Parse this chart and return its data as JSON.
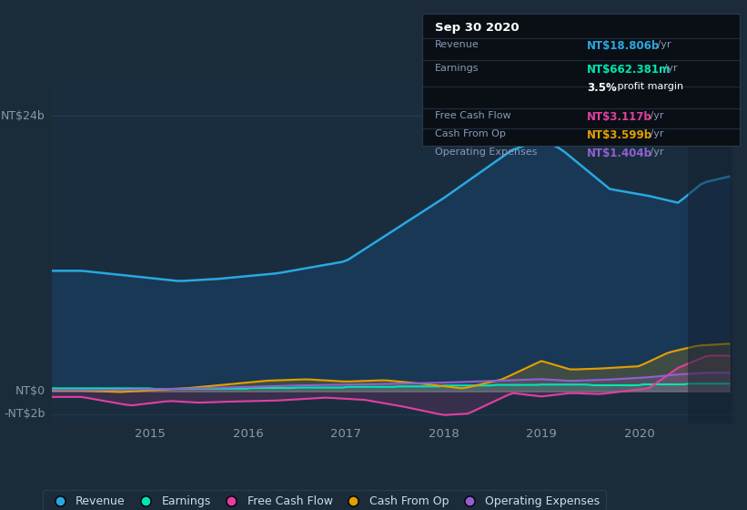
{
  "bg_color": "#1c2b3a",
  "chart_area_color": "#1a2d3e",
  "dark_strip_color": "#0f1923",
  "tooltip_bg": "#0a0f15",
  "tooltip_border": "#2a3a4a",
  "ylabel_top": "NT$24b",
  "ylabel_zero": "NT$0",
  "ylabel_neg": "-NT$2b",
  "ylim_low": -2.8,
  "ylim_high": 27,
  "xlabel_years": [
    "2015",
    "2016",
    "2017",
    "2018",
    "2019",
    "2020"
  ],
  "legend_items": [
    {
      "label": "Revenue",
      "color": "#29a8e0"
    },
    {
      "label": "Earnings",
      "color": "#00e5b0"
    },
    {
      "label": "Free Cash Flow",
      "color": "#e040a0"
    },
    {
      "label": "Cash From Op",
      "color": "#e0a000"
    },
    {
      "label": "Operating Expenses",
      "color": "#9060d0"
    }
  ],
  "revenue_color": "#29a8e0",
  "revenue_fill": "#183a5a",
  "earnings_color": "#00e5b0",
  "fcf_color": "#e040a0",
  "cashfromop_color": "#e0a000",
  "opex_color": "#9060d0",
  "tooltip_title": "Sep 30 2020",
  "tooltip_rows": [
    {
      "label": "Revenue",
      "value": "NT$18.806b",
      "suffix": " /yr",
      "color": "#29a8e0"
    },
    {
      "label": "Earnings",
      "value": "NT$662.381m",
      "suffix": " /yr",
      "color": "#00e5b0"
    },
    {
      "label": "",
      "value": "3.5%",
      "suffix": " profit margin",
      "color": "#ffffff"
    },
    {
      "label": "Free Cash Flow",
      "value": "NT$3.117b",
      "suffix": " /yr",
      "color": "#e040a0"
    },
    {
      "label": "Cash From Op",
      "value": "NT$3.599b",
      "suffix": " /yr",
      "color": "#e0a000"
    },
    {
      "label": "Operating Expenses",
      "value": "NT$1.404b",
      "suffix": " /yr",
      "color": "#9060d0"
    }
  ]
}
